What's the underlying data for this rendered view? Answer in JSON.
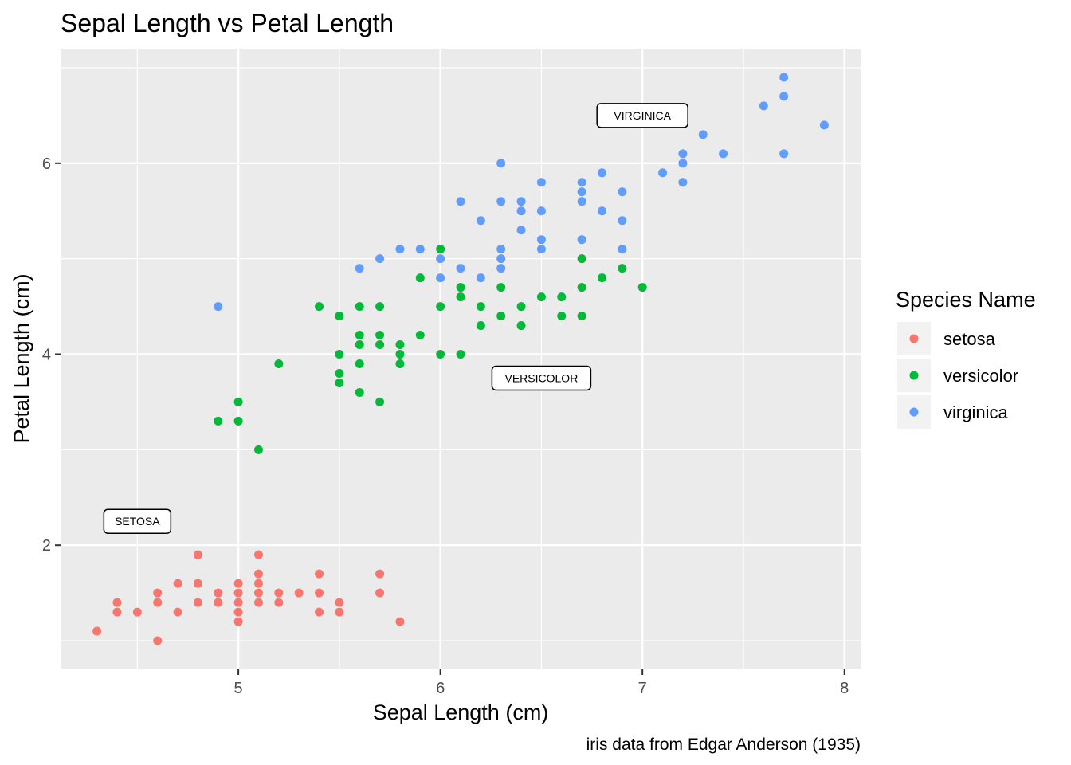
{
  "chart_data": {
    "type": "scatter",
    "title": "Sepal Length vs Petal Length",
    "xlabel": "Sepal Length (cm)",
    "ylabel": "Petal Length (cm)",
    "caption": "iris data from Edgar Anderson (1935)",
    "xlim": [
      4.12,
      8.08
    ],
    "ylim": [
      0.7,
      7.2
    ],
    "x_ticks": [
      5,
      6,
      7,
      8
    ],
    "y_ticks": [
      2,
      4,
      6
    ],
    "x_tick_labels": [
      "5",
      "6",
      "7",
      "8"
    ],
    "y_tick_labels": [
      "2",
      "4",
      "6"
    ],
    "grid": true,
    "legend": {
      "title": "Species Name",
      "position": "right"
    },
    "series": [
      {
        "name": "setosa",
        "color": "#F8766D",
        "points": [
          [
            4.3,
            1.1
          ],
          [
            4.4,
            1.3
          ],
          [
            4.4,
            1.4
          ],
          [
            4.5,
            1.3
          ],
          [
            4.6,
            1.0
          ],
          [
            4.6,
            1.4
          ],
          [
            4.6,
            1.5
          ],
          [
            4.7,
            1.3
          ],
          [
            4.7,
            1.6
          ],
          [
            4.8,
            1.4
          ],
          [
            4.8,
            1.6
          ],
          [
            4.8,
            1.9
          ],
          [
            4.9,
            1.4
          ],
          [
            4.9,
            1.5
          ],
          [
            5.0,
            1.2
          ],
          [
            5.0,
            1.3
          ],
          [
            5.0,
            1.4
          ],
          [
            5.0,
            1.5
          ],
          [
            5.0,
            1.6
          ],
          [
            5.1,
            1.4
          ],
          [
            5.1,
            1.5
          ],
          [
            5.1,
            1.6
          ],
          [
            5.1,
            1.7
          ],
          [
            5.1,
            1.9
          ],
          [
            5.2,
            1.4
          ],
          [
            5.2,
            1.5
          ],
          [
            5.3,
            1.5
          ],
          [
            5.4,
            1.3
          ],
          [
            5.4,
            1.5
          ],
          [
            5.4,
            1.7
          ],
          [
            5.5,
            1.3
          ],
          [
            5.5,
            1.4
          ],
          [
            5.7,
            1.5
          ],
          [
            5.7,
            1.7
          ],
          [
            5.8,
            1.2
          ]
        ]
      },
      {
        "name": "versicolor",
        "color": "#00BA38",
        "points": [
          [
            4.9,
            3.3
          ],
          [
            5.0,
            3.3
          ],
          [
            5.0,
            3.5
          ],
          [
            5.1,
            3.0
          ],
          [
            5.2,
            3.9
          ],
          [
            5.4,
            4.5
          ],
          [
            5.5,
            3.7
          ],
          [
            5.5,
            3.8
          ],
          [
            5.5,
            4.0
          ],
          [
            5.5,
            4.4
          ],
          [
            5.6,
            3.6
          ],
          [
            5.6,
            3.9
          ],
          [
            5.6,
            4.1
          ],
          [
            5.6,
            4.2
          ],
          [
            5.6,
            4.5
          ],
          [
            5.7,
            3.5
          ],
          [
            5.7,
            4.1
          ],
          [
            5.7,
            4.2
          ],
          [
            5.7,
            4.5
          ],
          [
            5.8,
            3.9
          ],
          [
            5.8,
            4.0
          ],
          [
            5.8,
            4.1
          ],
          [
            5.9,
            4.2
          ],
          [
            5.9,
            4.8
          ],
          [
            6.0,
            4.0
          ],
          [
            6.0,
            4.5
          ],
          [
            6.0,
            5.1
          ],
          [
            6.1,
            4.0
          ],
          [
            6.1,
            4.6
          ],
          [
            6.1,
            4.7
          ],
          [
            6.2,
            4.3
          ],
          [
            6.2,
            4.5
          ],
          [
            6.3,
            4.4
          ],
          [
            6.3,
            4.7
          ],
          [
            6.4,
            4.3
          ],
          [
            6.4,
            4.5
          ],
          [
            6.5,
            4.6
          ],
          [
            6.6,
            4.4
          ],
          [
            6.6,
            4.6
          ],
          [
            6.7,
            4.4
          ],
          [
            6.7,
            4.7
          ],
          [
            6.7,
            5.0
          ],
          [
            6.8,
            4.8
          ],
          [
            6.9,
            4.9
          ],
          [
            7.0,
            4.7
          ]
        ]
      },
      {
        "name": "virginica",
        "color": "#619CFF",
        "points": [
          [
            4.9,
            4.5
          ],
          [
            5.6,
            4.9
          ],
          [
            5.7,
            5.0
          ],
          [
            5.8,
            5.1
          ],
          [
            5.9,
            5.1
          ],
          [
            6.0,
            4.8
          ],
          [
            6.0,
            5.0
          ],
          [
            6.1,
            4.9
          ],
          [
            6.1,
            5.6
          ],
          [
            6.2,
            4.8
          ],
          [
            6.2,
            5.4
          ],
          [
            6.3,
            4.9
          ],
          [
            6.3,
            5.0
          ],
          [
            6.3,
            5.1
          ],
          [
            6.3,
            5.6
          ],
          [
            6.3,
            6.0
          ],
          [
            6.4,
            5.3
          ],
          [
            6.4,
            5.5
          ],
          [
            6.4,
            5.6
          ],
          [
            6.5,
            5.1
          ],
          [
            6.5,
            5.2
          ],
          [
            6.5,
            5.5
          ],
          [
            6.5,
            5.8
          ],
          [
            6.7,
            5.2
          ],
          [
            6.7,
            5.6
          ],
          [
            6.7,
            5.7
          ],
          [
            6.7,
            5.8
          ],
          [
            6.8,
            5.5
          ],
          [
            6.8,
            5.9
          ],
          [
            6.9,
            5.1
          ],
          [
            6.9,
            5.4
          ],
          [
            6.9,
            5.7
          ],
          [
            7.1,
            5.9
          ],
          [
            7.2,
            5.8
          ],
          [
            7.2,
            6.0
          ],
          [
            7.2,
            6.1
          ],
          [
            7.3,
            6.3
          ],
          [
            7.4,
            6.1
          ],
          [
            7.6,
            6.6
          ],
          [
            7.7,
            6.1
          ],
          [
            7.7,
            6.7
          ],
          [
            7.7,
            6.9
          ],
          [
            7.9,
            6.4
          ]
        ]
      }
    ],
    "annotations": [
      {
        "text": "SETOSA",
        "x": 4.5,
        "y": 2.25
      },
      {
        "text": "VERSICOLOR",
        "x": 6.5,
        "y": 3.75
      },
      {
        "text": "VIRGINICA",
        "x": 7.0,
        "y": 6.5
      }
    ]
  }
}
